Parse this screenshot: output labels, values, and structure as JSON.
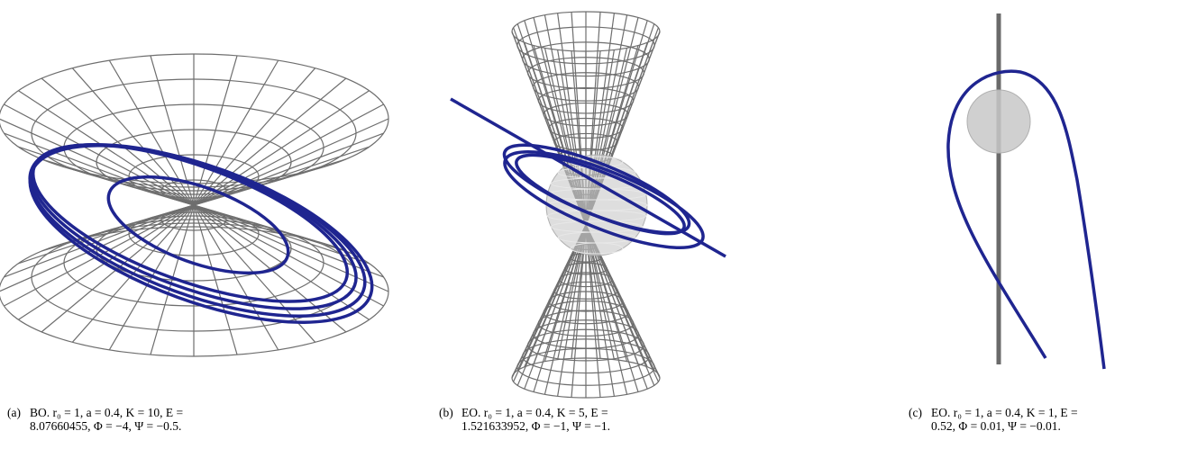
{
  "panels": [
    {
      "label": "(a)",
      "caption": [
        "BO. r₀ = 1, a = 0.4, K = 10, E =",
        "8.07660455, Φ = −4, Ψ = −0.5."
      ]
    },
    {
      "label": "(b)",
      "caption": [
        "EO. r₀ = 1, a = 0.4, K = 5, E =",
        "1.521633952, Φ = −1, Ψ = −1."
      ]
    },
    {
      "label": "(c)",
      "caption": [
        "EO. r₀ = 1, a = 0.4, K = 1, E =",
        "0.52, Φ = 0.01, Ψ = −0.01."
      ]
    }
  ]
}
